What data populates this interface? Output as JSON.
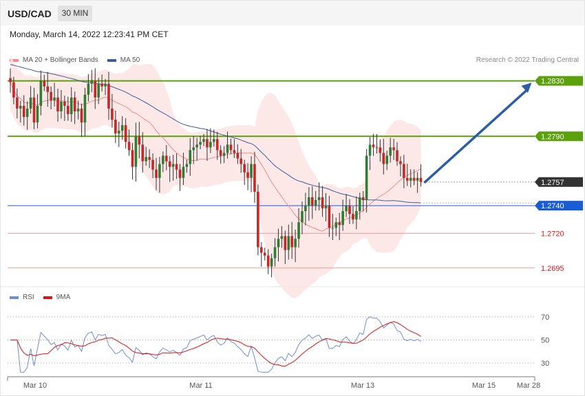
{
  "header": {
    "symbol": "USD/CAD",
    "timeframe": "30 MIN",
    "datetime": "Monday, March 14, 2022 12:23:41 PM CET"
  },
  "legend": {
    "ma20": "MA 20 + Bollinger Bands",
    "ma50": "MA 50",
    "credit": "Research © 2022 Trading Central"
  },
  "rsi_legend": {
    "rsi": "RSI",
    "ma9": "9MA"
  },
  "colors": {
    "bull": "#2e7d32",
    "bear": "#c62828",
    "ma20": "#f48a8a",
    "band_fill": "#fde4e4",
    "ma50": "#3d5c99",
    "resistance": "#5aa10c",
    "support_blue": "#1a5cd6",
    "support_red": "#f29a9a",
    "arrow": "#2c5ea8",
    "rsi": "#6b8fd6",
    "rsi_ma": "#e01010"
  },
  "chart_data": {
    "type": "candlestick",
    "price_axis": {
      "ymin": 1.2682,
      "ymax": 1.2868
    },
    "levels": [
      {
        "label": "1.2830",
        "value": 1.283,
        "kind": "resistance"
      },
      {
        "label": "1.2790",
        "value": 1.279,
        "kind": "resistance"
      },
      {
        "label": "1.2757",
        "value": 1.2757,
        "kind": "last"
      },
      {
        "label": "1.2740",
        "value": 1.274,
        "kind": "support_blue"
      },
      {
        "label": "1.2720",
        "value": 1.272,
        "kind": "support_red"
      },
      {
        "label": "1.2695",
        "value": 1.2695,
        "kind": "support_red"
      }
    ],
    "x_ticks": [
      "Mar 10",
      "Mar 11",
      "Mar 13",
      "Mar 15",
      "Mar 28"
    ],
    "closes": [
      1.2829,
      1.2818,
      1.281,
      1.2812,
      1.2804,
      1.281,
      1.2818,
      1.28,
      1.2812,
      1.283,
      1.2826,
      1.2822,
      1.2816,
      1.2818,
      1.2808,
      1.2815,
      1.2812,
      1.2806,
      1.2818,
      1.2808,
      1.281,
      1.28,
      1.282,
      1.2828,
      1.283,
      1.2818,
      1.2828,
      1.2826,
      1.2828,
      1.281,
      1.2802,
      1.2792,
      1.2794,
      1.2798,
      1.2786,
      1.278,
      1.2768,
      1.279,
      1.2784,
      1.2772,
      1.2775,
      1.2773,
      1.2766,
      1.276,
      1.277,
      1.2776,
      1.2772,
      1.2768,
      1.277,
      1.2766,
      1.276,
      1.2768,
      1.277,
      1.278,
      1.2782,
      1.2784,
      1.2786,
      1.2788,
      1.2782,
      1.2786,
      1.2788,
      1.278,
      1.2776,
      1.2778,
      1.2784,
      1.278,
      1.2778,
      1.2774,
      1.277,
      1.2764,
      1.276,
      1.277,
      1.275,
      1.271,
      1.2706,
      1.2704,
      1.2696,
      1.2702,
      1.271,
      1.2716,
      1.2718,
      1.2708,
      1.2718,
      1.271,
      1.2716,
      1.2728,
      1.2736,
      1.274,
      1.2746,
      1.274,
      1.2744,
      1.2746,
      1.2738,
      1.274,
      1.2724,
      1.2724,
      1.2728,
      1.2726,
      1.2736,
      1.274,
      1.2734,
      1.273,
      1.2736,
      1.2746,
      1.2744,
      1.2776,
      1.2784,
      1.2782,
      1.2782,
      1.2778,
      1.277,
      1.2776,
      1.2782,
      1.278,
      1.2772,
      1.277,
      1.276,
      1.2758,
      1.276,
      1.2758,
      1.276,
      1.2757
    ],
    "rsi": {
      "levels": [
        70,
        50,
        30
      ]
    }
  }
}
